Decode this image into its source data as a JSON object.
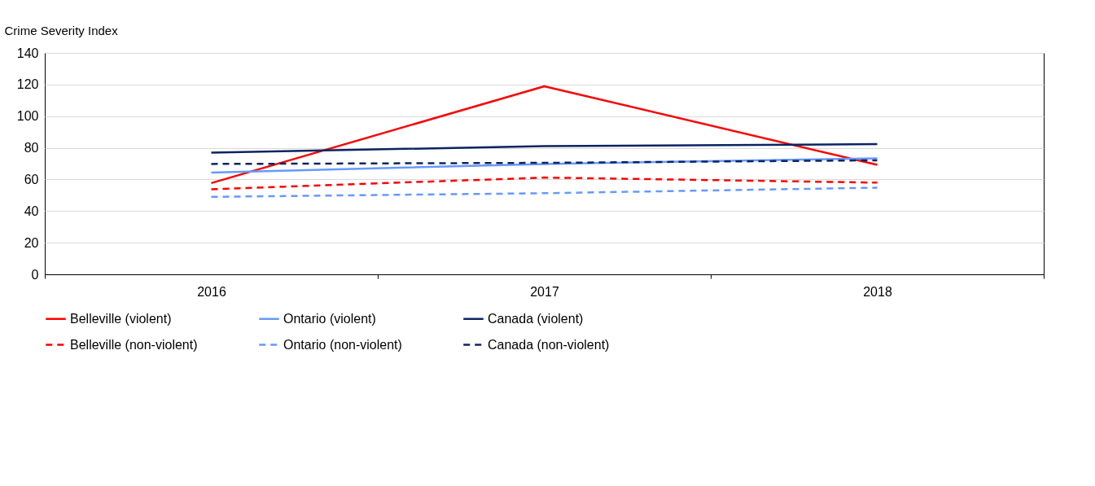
{
  "chart_data": {
    "type": "line",
    "ylabel": "Crime Severity Index",
    "categories": [
      "2016",
      "2017",
      "2018"
    ],
    "series": [
      {
        "name": "Belleville (violent)",
        "color": "#ff0000",
        "line_style": "solid",
        "values": [
          57.7,
          118.9,
          69.2
        ]
      },
      {
        "name": "Ontario (violent)",
        "color": "#6699ff",
        "line_style": "solid",
        "values": [
          64.4,
          69.8,
          73.4
        ]
      },
      {
        "name": "Canada (violent)",
        "color": "#0a2463",
        "line_style": "solid",
        "values": [
          76.9,
          81.1,
          82.3
        ]
      },
      {
        "name": "Belleville (non-violent)",
        "color": "#ff0000",
        "line_style": "dashed",
        "values": [
          53.8,
          61.2,
          58.0
        ]
      },
      {
        "name": "Ontario (non-violent)",
        "color": "#6699ff",
        "line_style": "dashed",
        "values": [
          49.0,
          51.3,
          54.8
        ]
      },
      {
        "name": "Canada (non-violent)",
        "color": "#0a2463",
        "line_style": "dashed",
        "values": [
          69.8,
          70.5,
          72.1
        ]
      }
    ],
    "ylim": [
      0,
      140
    ],
    "yticks": [
      0,
      20,
      40,
      60,
      80,
      100,
      120,
      140
    ],
    "grid": "y",
    "legend": "bottom",
    "marker": "none"
  }
}
